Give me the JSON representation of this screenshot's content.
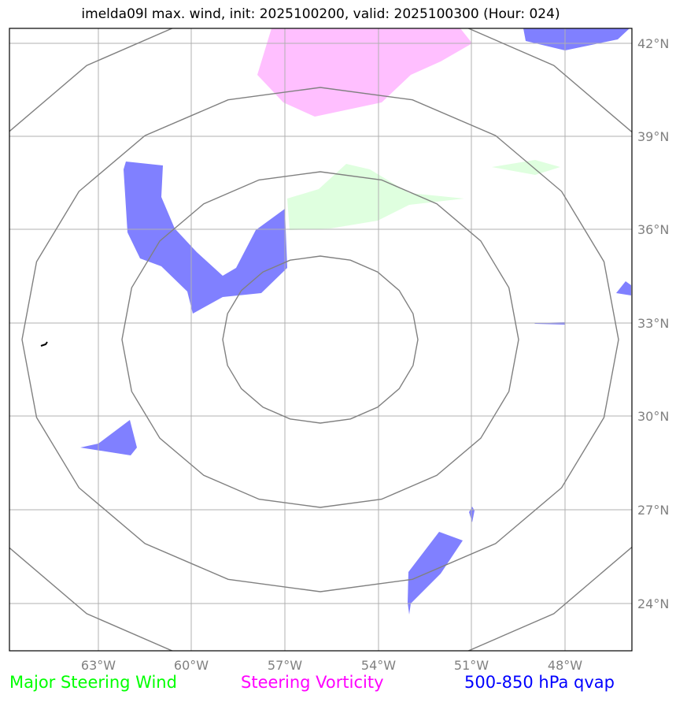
{
  "title": "imelda09l max. wind, init: 2025100200, valid: 2025100300 (Hour: 024)",
  "lon_ticks": [
    "63°W",
    "60°W",
    "57°W",
    "54°W",
    "51°W",
    "48°W"
  ],
  "lat_ticks": [
    "42°N",
    "39°N",
    "36°N",
    "33°N",
    "30°N",
    "27°N",
    "24°N"
  ],
  "legend": [
    {
      "label": "Major Steering Wind",
      "color": "#00ff00"
    },
    {
      "label": "Steering Vorticity",
      "color": "#ff00ff"
    },
    {
      "label": "500-850 hPa qvap",
      "color": "#0000ff"
    }
  ],
  "colors": {
    "qvap_fill": "#8080ff",
    "vorticity_fill": "#ffbfff",
    "wind_fill": "#dfffdf",
    "rings": "#808080",
    "grid": "#b0b0b0"
  }
}
